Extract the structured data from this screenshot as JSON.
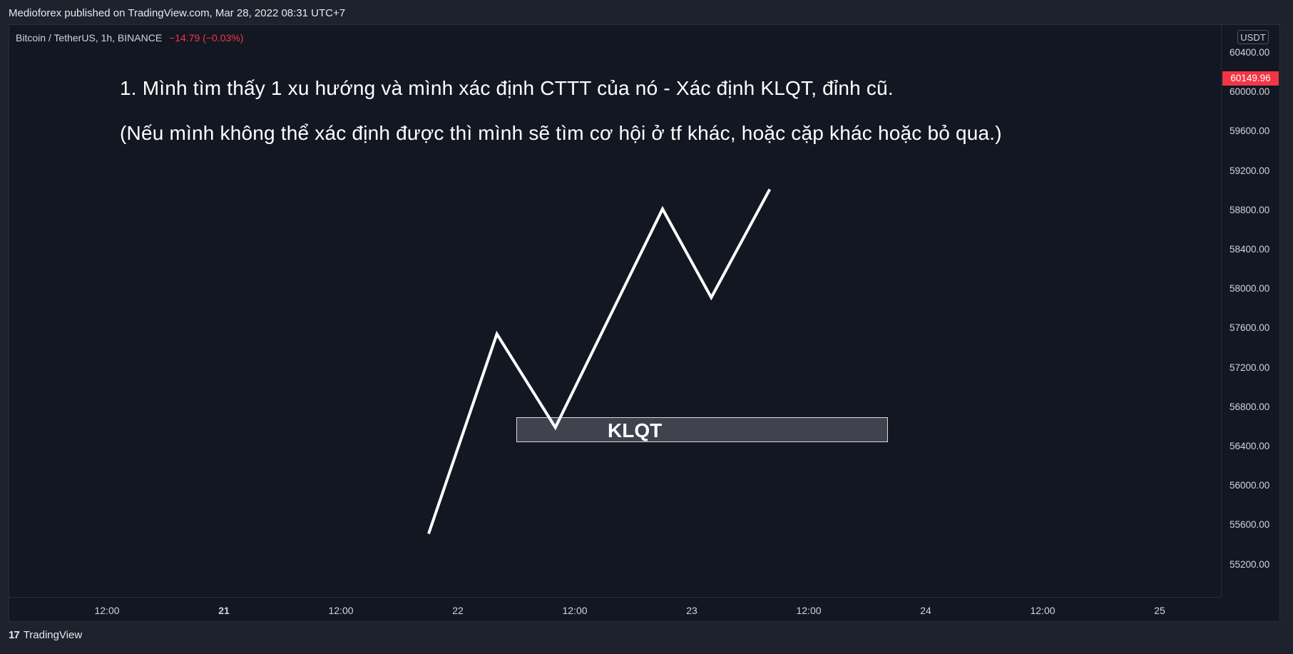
{
  "header": {
    "publisher_line": "Medioforex published on TradingView.com, Mar 28, 2022 08:31 UTC+7"
  },
  "symbol": {
    "pair": "Bitcoin / TetherUS, 1h, BINANCE",
    "change": "−14.79 (−0.03%)"
  },
  "price_axis": {
    "currency": "USDT",
    "last_price": "60149.96",
    "labels": [
      "60400.00",
      "60000.00",
      "59600.00",
      "59200.00",
      "58800.00",
      "58400.00",
      "58000.00",
      "57600.00",
      "57200.00",
      "56800.00",
      "56400.00",
      "56000.00",
      "55600.00",
      "55200.00"
    ]
  },
  "time_axis": {
    "labels": [
      {
        "text": "12:00",
        "bold": false
      },
      {
        "text": "21",
        "bold": true
      },
      {
        "text": "12:00",
        "bold": false
      },
      {
        "text": "22",
        "bold": false
      },
      {
        "text": "12:00",
        "bold": false
      },
      {
        "text": "23",
        "bold": false
      },
      {
        "text": "12:00",
        "bold": false
      },
      {
        "text": "24",
        "bold": false
      },
      {
        "text": "12:00",
        "bold": false
      },
      {
        "text": "25",
        "bold": false
      }
    ]
  },
  "annotations": {
    "line1": "1. Mình tìm thấy 1 xu hướng và mình xác định CTTT của nó - Xác định KLQT, đỉnh cũ.",
    "line2": "(Nếu mình không thể xác định được thì mình sẽ tìm cơ hội ở tf khác, hoặc cặp khác hoặc bỏ qua.)",
    "zone_label": "KLQT"
  },
  "trend_path": [
    {
      "time": "2022-03-21 21:00",
      "price": 55520
    },
    {
      "time": "2022-03-22 04:00",
      "price": 57550
    },
    {
      "time": "2022-03-22 10:00",
      "price": 56600
    },
    {
      "time": "2022-03-22 21:00",
      "price": 58820
    },
    {
      "time": "2022-03-23 02:00",
      "price": 57920
    },
    {
      "time": "2022-03-23 08:00",
      "price": 59020
    }
  ],
  "zone": {
    "price_top": 56740,
    "price_bottom": 56490,
    "time_start": "2022-03-22 06:00",
    "time_end": "2022-03-23 14:00"
  },
  "footer": {
    "brand": "TradingView",
    "logo_mark": "17"
  },
  "colors": {
    "background": "#131722",
    "down": "#f23645",
    "line": "#ffffff"
  }
}
